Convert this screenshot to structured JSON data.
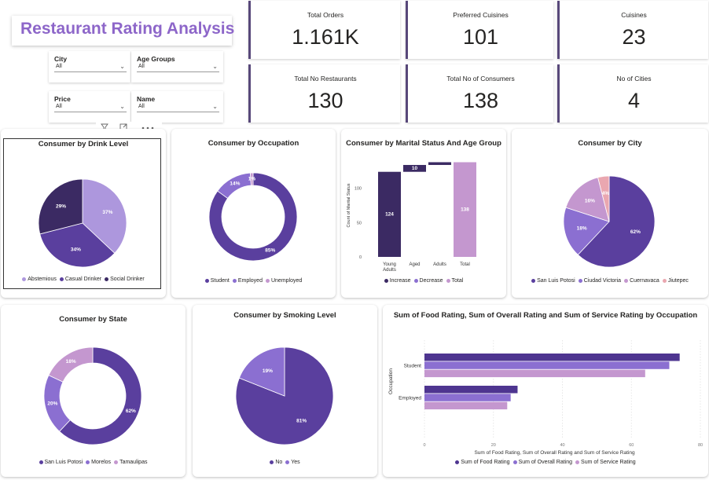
{
  "title": "Restaurant Rating Analysis",
  "slicers": [
    {
      "label": "City",
      "value": "All"
    },
    {
      "label": "Age Groups",
      "value": "All"
    },
    {
      "label": "Price",
      "value": "All"
    },
    {
      "label": "Name",
      "value": "All"
    }
  ],
  "visual_header_icons": [
    "filter-icon",
    "focus-mode-icon",
    "more-options-icon"
  ],
  "kpis": [
    {
      "label": "Total Orders",
      "value": "1.161K"
    },
    {
      "label": "Preferred Cuisines",
      "value": "101"
    },
    {
      "label": "Cuisines",
      "value": "23"
    },
    {
      "label": "Total No Restaurants",
      "value": "130"
    },
    {
      "label": "Total No of Consumers",
      "value": "138"
    },
    {
      "label": "No of Cities",
      "value": "4"
    }
  ],
  "colors": {
    "dark": "#3b2a63",
    "main": "#5a3f9e",
    "mid": "#8b6fd1",
    "light": "#ad97dd",
    "pink": "#c497cf",
    "salmon": "#eaa7b0",
    "title": "#8d66c9"
  },
  "chart_data": [
    {
      "type": "pie",
      "title": "Consumer by Drink Level",
      "categories": [
        "Abstemious",
        "Casual Drinker",
        "Social Drinker"
      ],
      "values": [
        37,
        34,
        29
      ],
      "labels": [
        "37%",
        "34%",
        "29%"
      ],
      "colors": [
        "#ad97dd",
        "#5a3f9e",
        "#3b2a63"
      ],
      "legend": "bottom"
    },
    {
      "type": "pie",
      "title": "Consumer by Occupation",
      "donut": true,
      "categories": [
        "Student",
        "Employed",
        "Unemployed"
      ],
      "values": [
        85,
        14,
        1
      ],
      "labels": [
        "85%",
        "14%",
        "1%"
      ],
      "colors": [
        "#5a3f9e",
        "#8b6fd1",
        "#c497cf"
      ],
      "legend": "bottom"
    },
    {
      "type": "bar",
      "subtype": "waterfall",
      "title": "Consumer by Marital Status And Age Group",
      "categories": [
        "Young Adults",
        "Aged",
        "Adults",
        "Total"
      ],
      "values": [
        124,
        10,
        4,
        138
      ],
      "labels": [
        "124",
        "10",
        "",
        "138"
      ],
      "kinds": [
        "increase",
        "increase",
        "increase",
        "total"
      ],
      "ylabel": "Count of Marital Status",
      "yticks": [
        0,
        50,
        100
      ],
      "ylim": [
        0,
        150
      ],
      "legend_entries": [
        "Increase",
        "Decrease",
        "Total"
      ],
      "colors": [
        "#3b2a63",
        "#8b6fd1",
        "#c497cf"
      ]
    },
    {
      "type": "pie",
      "title": "Consumer by City",
      "categories": [
        "San Luis Potosi",
        "Ciudad Victoria",
        "Cuernavaca",
        "Jiutepec"
      ],
      "values": [
        62,
        18,
        16,
        4
      ],
      "labels": [
        "62%",
        "18%",
        "16%",
        "4%"
      ],
      "colors": [
        "#5a3f9e",
        "#8b6fd1",
        "#c497cf",
        "#eaa7b0"
      ],
      "legend": "bottom"
    },
    {
      "type": "pie",
      "title": "Consumer by State",
      "donut": true,
      "categories": [
        "San Luis Potosi",
        "Morelos",
        "Tamaulipas"
      ],
      "values": [
        62,
        20,
        18
      ],
      "labels": [
        "62%",
        "20%",
        "18%"
      ],
      "colors": [
        "#5a3f9e",
        "#8b6fd1",
        "#c497cf"
      ],
      "legend": "bottom"
    },
    {
      "type": "pie",
      "title": "Consumer by Smoking Level",
      "categories": [
        "No",
        "Yes"
      ],
      "values": [
        81,
        19
      ],
      "labels": [
        "81%",
        "19%"
      ],
      "colors": [
        "#5a3f9e",
        "#8b6fd1"
      ],
      "legend": "bottom"
    },
    {
      "type": "bar",
      "orientation": "horizontal",
      "title": "Sum of Food Rating, Sum of Overall Rating and Sum of Service Rating by Occupation",
      "categories": [
        "Student",
        "Employed"
      ],
      "series": [
        {
          "name": "Sum of Food Rating",
          "values": [
            74,
            27
          ]
        },
        {
          "name": "Sum of Overall Rating",
          "values": [
            71,
            25
          ]
        },
        {
          "name": "Sum of Service Rating",
          "values": [
            64,
            24
          ]
        }
      ],
      "xlabel": "Sum of Food Rating, Sum of Overall Rating and Sum of Service Rating",
      "ylabel": "Occupation",
      "xticks": [
        0,
        20,
        40,
        60,
        80
      ],
      "xlim": [
        0,
        80
      ],
      "colors": [
        "#4e3590",
        "#8b6fd1",
        "#c497cf"
      ],
      "legend": "bottom"
    }
  ]
}
